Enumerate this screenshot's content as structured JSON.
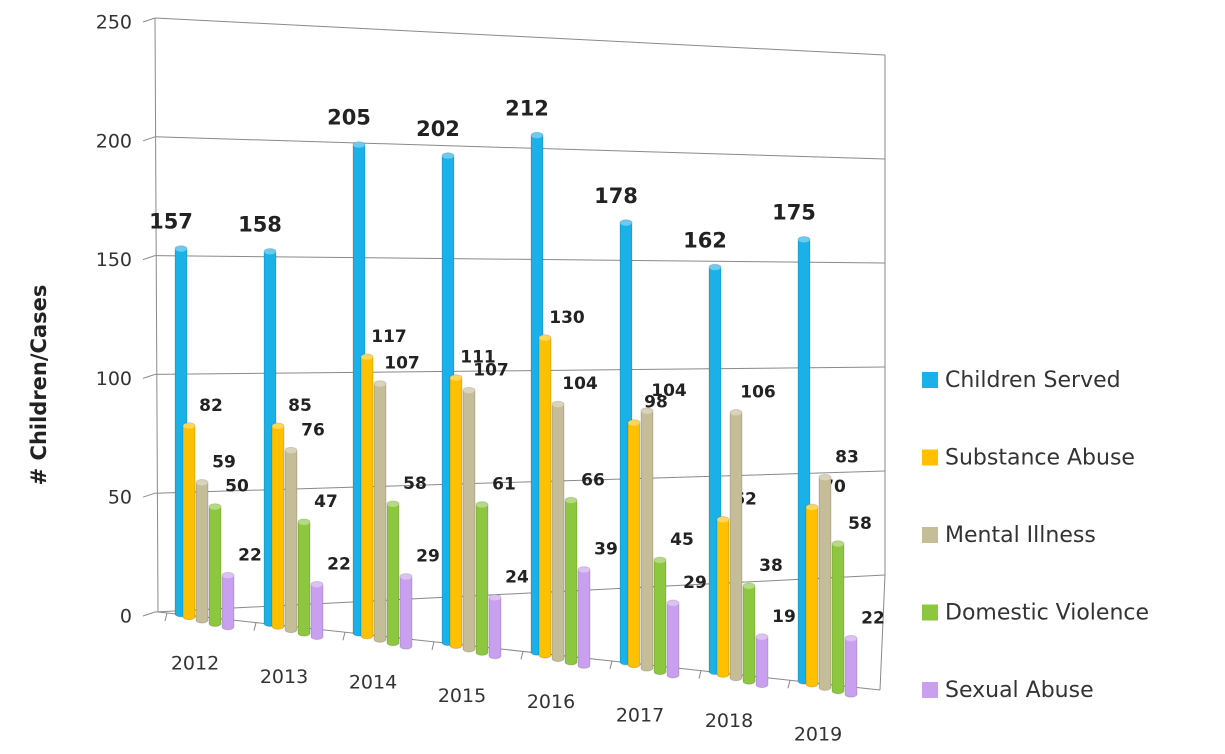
{
  "chart_data": {
    "type": "bar3d",
    "y_label": "# Children/Cases",
    "categories": [
      "2012",
      "2013",
      "2014",
      "2015",
      "2016",
      "2017",
      "2018",
      "2019"
    ],
    "series": [
      {
        "name": "Children Served",
        "color": "#1ab0e8",
        "values": [
          157,
          158,
          205,
          202,
          212,
          178,
          162,
          175
        ]
      },
      {
        "name": "Substance Abuse",
        "color": "#ffc000",
        "values": [
          82,
          85,
          117,
          111,
          130,
          98,
          62,
          70
        ]
      },
      {
        "name": "Mental Illness",
        "color": "#c4bd97",
        "values": [
          59,
          76,
          107,
          107,
          104,
          104,
          106,
          83
        ]
      },
      {
        "name": "Domestic Violence",
        "color": "#8dc63f",
        "values": [
          50,
          47,
          58,
          61,
          66,
          45,
          38,
          58
        ]
      },
      {
        "name": "Sexual Abuse",
        "color": "#c9a0f0",
        "values": [
          22,
          22,
          29,
          24,
          39,
          29,
          19,
          22
        ]
      }
    ],
    "ylim": [
      0,
      250
    ],
    "yticks": [
      0,
      50,
      100,
      150,
      200,
      250
    ],
    "grid": true,
    "legend": "right"
  }
}
